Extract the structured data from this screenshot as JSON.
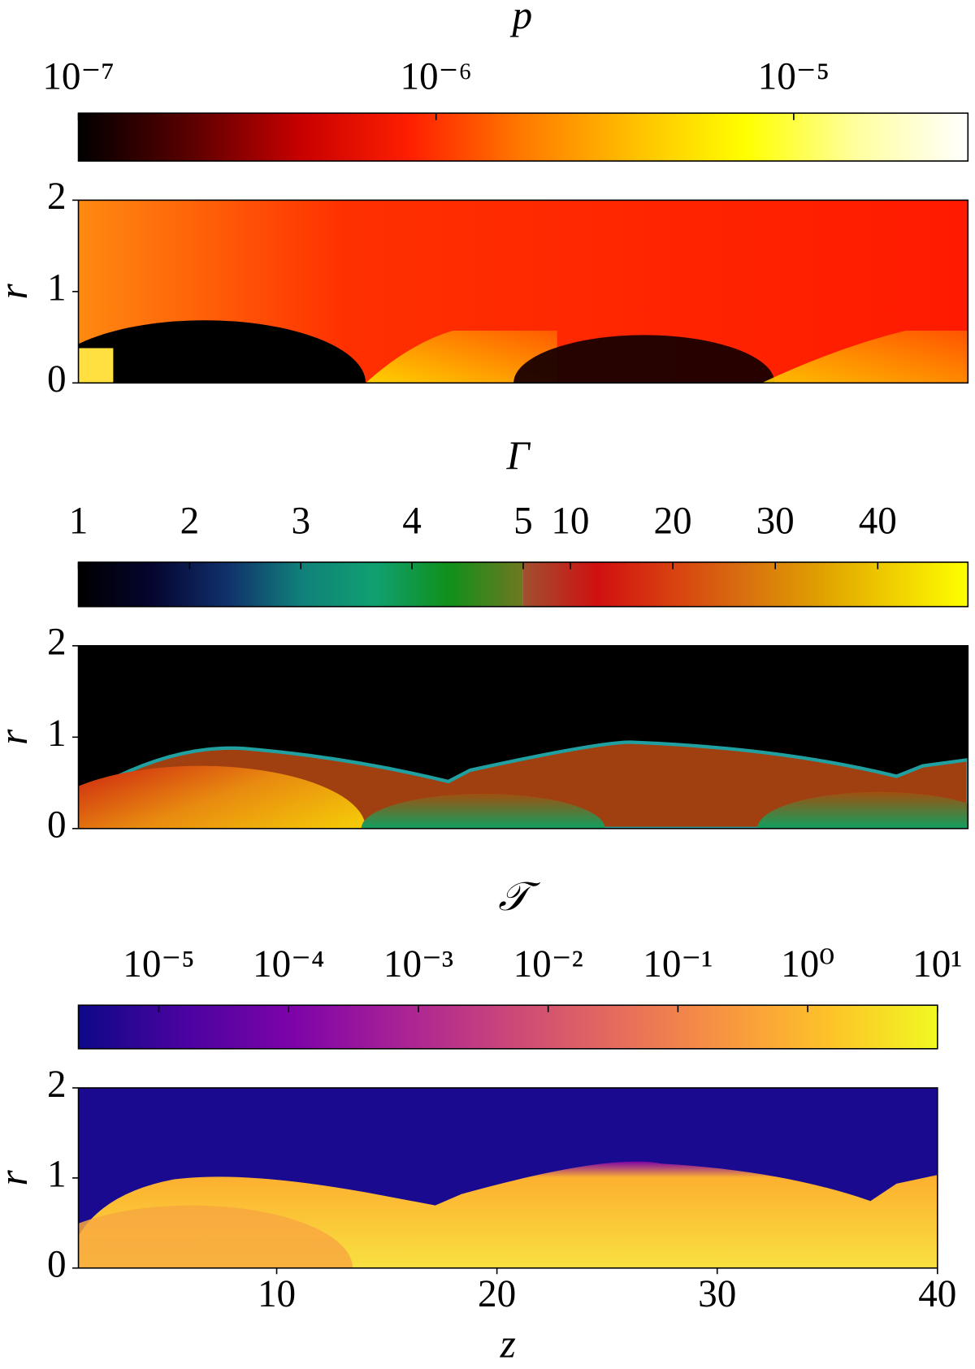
{
  "chart_data": [
    {
      "type": "heatmap",
      "colorbar": {
        "label": "p",
        "scale": "log",
        "lim": [
          1e-07,
          3.07e-05
        ],
        "colors": [
          "#000000",
          "#5a0000",
          "#c80000",
          "#ff2000",
          "#ff7a00",
          "#ffc000",
          "#ffff00",
          "#ffffa0",
          "#ffffff"
        ],
        "ticks": [
          {
            "value": 1e-07,
            "label": "10⁻⁷"
          },
          {
            "value": 1e-06,
            "label": "10⁻⁶"
          },
          {
            "value": 1e-05,
            "label": "10⁻⁵"
          }
        ]
      },
      "ylabel": "r",
      "ylim": [
        0,
        2
      ],
      "yticks": [
        0,
        1,
        2
      ]
    },
    {
      "type": "heatmap",
      "colorbar": {
        "label": "Γ",
        "scale": "linear",
        "segments": [
          {
            "lim": [
              1,
              5
            ],
            "colors": [
              "#000000",
              "#050530",
              "#10306a",
              "#10807a",
              "#10a070",
              "#10901a",
              "#707820"
            ]
          },
          {
            "lim": [
              5.4,
              48.8
            ],
            "colors": [
              "#a05030",
              "#d01010",
              "#d84010",
              "#d87010",
              "#e0a000",
              "#f0d000",
              "#ffff00"
            ]
          }
        ],
        "ticks": [
          1,
          2,
          3,
          4,
          5,
          10,
          20,
          30,
          40
        ]
      },
      "ylabel": "r",
      "ylim": [
        0,
        2
      ],
      "yticks": [
        0,
        1,
        2
      ]
    },
    {
      "type": "heatmap",
      "colorbar": {
        "label": "𝒯",
        "scale": "log",
        "lim": [
          2.4e-06,
          10
        ],
        "colors": [
          "#0d0887",
          "#4b03a1",
          "#7d03a8",
          "#a82296",
          "#cb4679",
          "#e56b5d",
          "#f89441",
          "#fdc328",
          "#f0f921"
        ],
        "ticks": [
          {
            "value": 1e-05,
            "label": "10⁻⁵"
          },
          {
            "value": 0.0001,
            "label": "10⁻⁴"
          },
          {
            "value": 0.001,
            "label": "10⁻³"
          },
          {
            "value": 0.01,
            "label": "10⁻²"
          },
          {
            "value": 0.1,
            "label": "10⁻¹"
          },
          {
            "value": 1,
            "label": "10⁰"
          },
          {
            "value": 10,
            "label": "10¹"
          }
        ]
      },
      "ylabel": "r",
      "ylim": [
        0,
        2
      ],
      "yticks": [
        0,
        1,
        2
      ],
      "xlabel": "z",
      "xlim": [
        1,
        40
      ],
      "xticks": [
        10,
        20,
        30,
        40
      ]
    }
  ]
}
